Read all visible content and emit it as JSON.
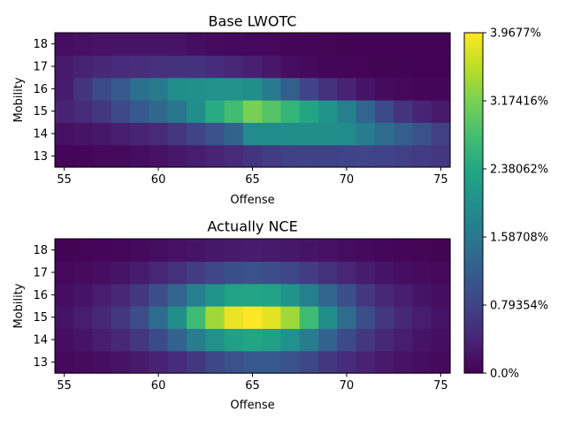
{
  "chart_data": [
    {
      "type": "heatmap",
      "title": "Base LWOTC",
      "xlabel": "Offense",
      "ylabel": "Mobility",
      "x_range": [
        55,
        75
      ],
      "y_range": [
        13,
        18
      ],
      "x_ticks": [
        55,
        60,
        65,
        70,
        75
      ],
      "y_ticks": [
        13,
        14,
        15,
        16,
        17,
        18
      ],
      "values": [
        [
          0.05,
          0.06,
          0.08,
          0.09,
          0.14,
          0.18,
          0.25,
          0.32,
          0.4,
          0.48,
          0.6,
          0.7,
          0.76,
          0.78,
          0.78,
          0.8,
          0.82,
          0.8,
          0.75,
          0.68,
          0.65
        ],
        [
          0.18,
          0.2,
          0.25,
          0.33,
          0.4,
          0.47,
          0.65,
          0.8,
          1.0,
          1.25,
          1.9,
          1.92,
          1.95,
          1.95,
          1.95,
          1.9,
          1.65,
          1.4,
          1.2,
          1.0,
          0.75
        ],
        [
          0.38,
          0.48,
          0.65,
          0.9,
          1.1,
          1.35,
          1.55,
          1.95,
          2.45,
          2.75,
          3.15,
          2.9,
          2.6,
          2.35,
          2.05,
          1.7,
          1.3,
          0.9,
          0.6,
          0.4,
          0.28
        ],
        [
          0.3,
          0.6,
          0.9,
          1.1,
          1.45,
          1.6,
          1.95,
          1.98,
          2.0,
          2.0,
          1.95,
          1.6,
          1.2,
          0.8,
          0.55,
          0.38,
          0.22,
          0.12,
          0.08,
          0.06,
          0.05
        ],
        [
          0.28,
          0.38,
          0.45,
          0.5,
          0.52,
          0.55,
          0.58,
          0.58,
          0.5,
          0.42,
          0.35,
          0.25,
          0.15,
          0.1,
          0.06,
          0.05,
          0.04,
          0.03,
          0.03,
          0.02,
          0.02
        ],
        [
          0.15,
          0.18,
          0.2,
          0.22,
          0.22,
          0.22,
          0.2,
          0.15,
          0.12,
          0.1,
          0.08,
          0.08,
          0.06,
          0.05,
          0.04,
          0.03,
          0.02,
          0.02,
          0.02,
          0.02,
          0.02
        ]
      ]
    },
    {
      "type": "heatmap",
      "title": "Actually NCE",
      "xlabel": "Offense",
      "ylabel": "Mobility",
      "x_range": [
        55,
        75
      ],
      "y_range": [
        13,
        18
      ],
      "x_ticks": [
        55,
        60,
        65,
        70,
        75
      ],
      "y_ticks": [
        13,
        14,
        15,
        16,
        17,
        18
      ],
      "values": [
        [
          0.08,
          0.12,
          0.15,
          0.2,
          0.28,
          0.38,
          0.5,
          0.65,
          0.85,
          1.0,
          1.1,
          1.1,
          1.0,
          0.85,
          0.65,
          0.5,
          0.38,
          0.28,
          0.2,
          0.15,
          0.1
        ],
        [
          0.15,
          0.22,
          0.32,
          0.45,
          0.65,
          0.9,
          1.25,
          1.65,
          2.0,
          2.25,
          2.35,
          2.25,
          2.0,
          1.65,
          1.25,
          0.9,
          0.65,
          0.45,
          0.32,
          0.22,
          0.15
        ],
        [
          0.22,
          0.32,
          0.45,
          0.65,
          0.95,
          1.4,
          1.95,
          2.7,
          3.4,
          3.85,
          3.95,
          3.8,
          3.4,
          2.7,
          1.95,
          1.4,
          0.95,
          0.65,
          0.45,
          0.32,
          0.22
        ],
        [
          0.15,
          0.22,
          0.32,
          0.45,
          0.65,
          0.95,
          1.3,
          1.7,
          2.05,
          2.3,
          2.35,
          2.3,
          2.05,
          1.7,
          1.3,
          0.95,
          0.65,
          0.45,
          0.32,
          0.22,
          0.15
        ],
        [
          0.08,
          0.12,
          0.15,
          0.22,
          0.3,
          0.42,
          0.55,
          0.7,
          0.85,
          0.95,
          1.0,
          0.95,
          0.85,
          0.7,
          0.55,
          0.42,
          0.3,
          0.22,
          0.15,
          0.12,
          0.08
        ],
        [
          0.03,
          0.04,
          0.05,
          0.07,
          0.1,
          0.14,
          0.18,
          0.22,
          0.25,
          0.28,
          0.3,
          0.28,
          0.25,
          0.22,
          0.18,
          0.14,
          0.1,
          0.07,
          0.05,
          0.04,
          0.03
        ]
      ]
    }
  ],
  "colorbar": {
    "colormap": "viridis",
    "range": [
      0,
      3.9677
    ],
    "tick_values": [
      0,
      0.79354,
      1.58708,
      2.38062,
      3.17416,
      3.9677
    ],
    "tick_labels": [
      "0.0%",
      "0.79354%",
      "1.58708%",
      "2.38062%",
      "3.17416%",
      "3.9677%"
    ]
  }
}
